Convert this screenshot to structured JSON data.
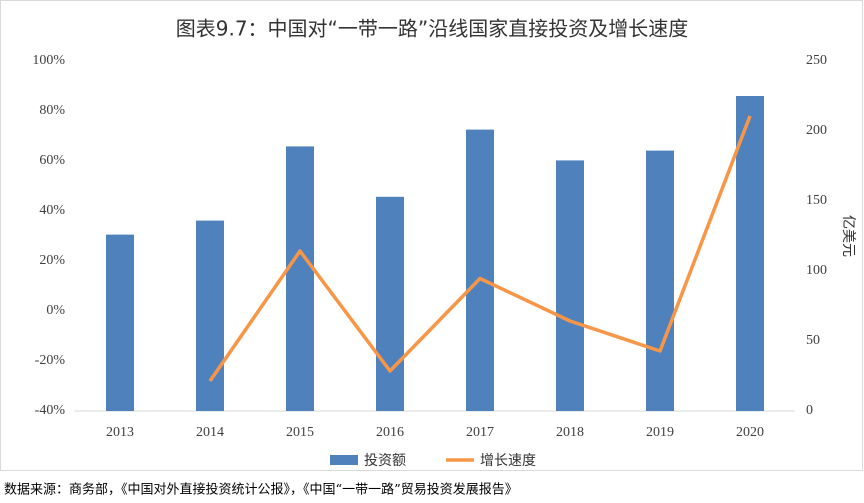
{
  "chart_data": {
    "type": "bar",
    "title": "图表9.7：中国对“一带一路”沿线国家直接投资及增长速度",
    "categories": [
      "2013",
      "2014",
      "2015",
      "2016",
      "2017",
      "2018",
      "2019",
      "2020"
    ],
    "series": [
      {
        "name": "投资额",
        "type": "bar",
        "axis": "y2",
        "color": "#4f81bd",
        "values": [
          126,
          136,
          189,
          153,
          201,
          179,
          186,
          225
        ]
      },
      {
        "name": "增长速度",
        "type": "line",
        "axis": "y",
        "color": "#f79646",
        "values": [
          null,
          -28,
          24,
          -24,
          13,
          -4,
          -16,
          78
        ]
      }
    ],
    "ylim": [
      -40,
      100
    ],
    "yticks": [
      {
        "value": -40,
        "label": "-40%"
      },
      {
        "value": -20,
        "label": "-20%"
      },
      {
        "value": 0,
        "label": "0%"
      },
      {
        "value": 20,
        "label": "20%"
      },
      {
        "value": 40,
        "label": "40%"
      },
      {
        "value": 60,
        "label": "60%"
      },
      {
        "value": 80,
        "label": "80%"
      },
      {
        "value": 100,
        "label": "100%"
      }
    ],
    "y2lim": [
      0,
      250
    ],
    "y2ticks": [
      0,
      50,
      100,
      150,
      200,
      250
    ],
    "y2label": "亿美元",
    "grid": false,
    "legend": "bottom",
    "source": "数据来源：商务部，《中国对外直接投资统计公报》，《中国“一带一路”贸易投资发展报告》"
  }
}
